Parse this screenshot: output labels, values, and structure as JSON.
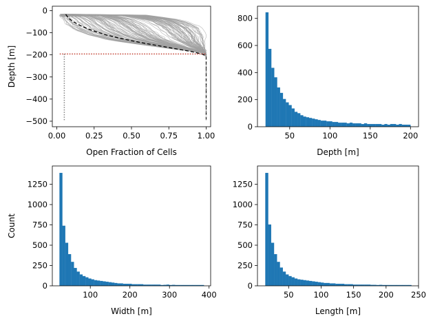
{
  "figure": {
    "background": "#ffffff",
    "bar_color": "#1f77b4",
    "bar_edge_color": "#1f77b4",
    "trace_color": "#a0a0a0",
    "mean_line_color": "#000000",
    "threshold_color": "#c0392b"
  },
  "chart_data": [
    {
      "id": "profiles",
      "type": "line",
      "xlabel": "Open Fraction of Cells",
      "ylabel": "Depth [m]",
      "xlim": [
        -0.03,
        1.03
      ],
      "ylim": [
        -525,
        20
      ],
      "xticks": [
        0.0,
        0.25,
        0.5,
        0.75,
        1.0
      ],
      "xtick_labels": [
        "0.00",
        "0.25",
        "0.50",
        "0.75",
        "1.00"
      ],
      "yticks": [
        0,
        -100,
        -200,
        -300,
        -400,
        -500
      ],
      "ytick_labels": [
        "0",
        "−100",
        "−200",
        "−300",
        "−400",
        "−500"
      ],
      "grid": false,
      "traces": {
        "count": 140,
        "description": "individual open-fraction profiles",
        "style": "solid thin grey",
        "base_profile": {
          "depth": [
            -20,
            -30,
            -40,
            -50,
            -60,
            -70,
            -80,
            -90,
            -100,
            -110,
            -120,
            -130,
            -140,
            -150,
            -160,
            -170,
            -180,
            -190,
            -200,
            -205
          ],
          "open_fraction_min": [
            0.02,
            0.03,
            0.04,
            0.05,
            0.06,
            0.08,
            0.1,
            0.13,
            0.17,
            0.21,
            0.27,
            0.33,
            0.42,
            0.52,
            0.63,
            0.74,
            0.86,
            0.97,
            1.0,
            1.0
          ],
          "open_fraction_max": [
            0.6,
            0.72,
            0.82,
            0.88,
            0.92,
            0.95,
            0.97,
            0.98,
            0.99,
            1.0,
            1.0,
            1.0,
            1.0,
            1.0,
            1.0,
            1.0,
            1.0,
            1.0,
            1.0,
            1.0
          ]
        }
      },
      "series": [
        {
          "style": "dashed",
          "color": "#000000",
          "x": [
            0.06,
            0.08,
            0.11,
            0.15,
            0.2,
            0.26,
            0.33,
            0.41,
            0.5,
            0.6,
            0.7,
            0.8,
            0.9,
            0.97,
            1.0,
            1.0,
            1.0,
            1.0
          ],
          "y": [
            -17,
            -35,
            -50,
            -65,
            -80,
            -95,
            -110,
            -123,
            -136,
            -149,
            -161,
            -173,
            -185,
            -196,
            -205,
            -300,
            -400,
            -490
          ]
        },
        {
          "style": "dotted",
          "color": "#c0392b",
          "x": [
            0.02,
            1.0
          ],
          "y": [
            -196,
            -196
          ]
        },
        {
          "style": "dotted",
          "color": "#808080",
          "x": [
            0.05,
            0.05
          ],
          "y": [
            -196,
            -497
          ]
        },
        {
          "style": "dotted",
          "color": "#808080",
          "x": [
            1.0,
            1.0
          ],
          "y": [
            -196,
            -497
          ]
        }
      ]
    },
    {
      "id": "depth",
      "type": "bar",
      "xlabel": "Depth [m]",
      "ylabel": "",
      "xlim": [
        10,
        210
      ],
      "ylim": [
        0,
        890
      ],
      "xticks": [
        50,
        100,
        150,
        200
      ],
      "xtick_labels": [
        "50",
        "100",
        "150",
        "200"
      ],
      "yticks": [
        0,
        200,
        400,
        600,
        800
      ],
      "ytick_labels": [
        "0",
        "200",
        "400",
        "600",
        "800"
      ],
      "grid": false,
      "bin_start": 20,
      "bin_width": 3.6,
      "values": [
        845,
        575,
        435,
        365,
        290,
        250,
        205,
        180,
        160,
        135,
        110,
        100,
        85,
        75,
        70,
        65,
        60,
        55,
        50,
        45,
        45,
        40,
        40,
        35,
        35,
        30,
        30,
        30,
        25,
        30,
        25,
        25,
        25,
        20,
        25,
        20,
        20,
        20,
        20,
        20,
        15,
        20,
        15,
        20,
        20,
        15,
        20,
        15,
        15,
        15
      ]
    },
    {
      "id": "width",
      "type": "bar",
      "xlabel": "Width [m]",
      "ylabel": "Count",
      "xlim": [
        4,
        404
      ],
      "ylim": [
        0,
        1475
      ],
      "xticks": [
        100,
        200,
        300,
        400
      ],
      "xtick_labels": [
        "100",
        "200",
        "300",
        "400"
      ],
      "yticks": [
        0,
        250,
        500,
        750,
        1000,
        1250
      ],
      "ytick_labels": [
        "0",
        "250",
        "500",
        "750",
        "1000",
        "1250"
      ],
      "grid": false,
      "bin_start": 22,
      "bin_width": 7.3,
      "values": [
        1390,
        740,
        530,
        390,
        295,
        220,
        175,
        140,
        120,
        105,
        90,
        80,
        70,
        65,
        60,
        55,
        50,
        45,
        40,
        35,
        30,
        30,
        25,
        25,
        25,
        20,
        20,
        20,
        20,
        15,
        15,
        15,
        15,
        15,
        15,
        10,
        12,
        15,
        10,
        12,
        10,
        10,
        10,
        10,
        10,
        10,
        10,
        10,
        10,
        10
      ]
    },
    {
      "id": "length",
      "type": "bar",
      "xlabel": "Length [m]",
      "ylabel": "",
      "xlim": [
        2,
        250
      ],
      "ylim": [
        0,
        1475
      ],
      "xticks": [
        50,
        100,
        150,
        200,
        250
      ],
      "xtick_labels": [
        "50",
        "100",
        "150",
        "200",
        "250"
      ],
      "yticks": [
        0,
        250,
        500,
        750,
        1000,
        1250
      ],
      "ytick_labels": [
        "0",
        "250",
        "500",
        "750",
        "1000",
        "1250"
      ],
      "grid": false,
      "bin_start": 14,
      "bin_width": 4.5,
      "values": [
        1390,
        755,
        530,
        390,
        295,
        225,
        175,
        140,
        120,
        105,
        90,
        80,
        75,
        70,
        65,
        60,
        55,
        50,
        45,
        40,
        35,
        35,
        30,
        30,
        25,
        25,
        25,
        20,
        20,
        20,
        15,
        15,
        15,
        15,
        15,
        15,
        12,
        12,
        10,
        12,
        10,
        10,
        10,
        10,
        10,
        10,
        10,
        10,
        10,
        10
      ]
    }
  ]
}
